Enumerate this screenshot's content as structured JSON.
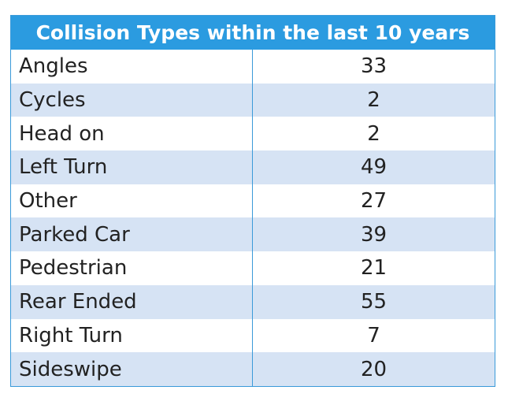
{
  "table": {
    "title": "Collision Types within the last 10 years",
    "rows": [
      [
        "Angles",
        33
      ],
      [
        "Cycles",
        2
      ],
      [
        "Head on",
        2
      ],
      [
        "Left Turn",
        49
      ],
      [
        "Other",
        27
      ],
      [
        "Parked Car",
        39
      ],
      [
        "Pedestrian",
        21
      ],
      [
        "Rear Ended",
        55
      ],
      [
        "Right Turn",
        7
      ],
      [
        "Sideswipe",
        20
      ]
    ]
  }
}
